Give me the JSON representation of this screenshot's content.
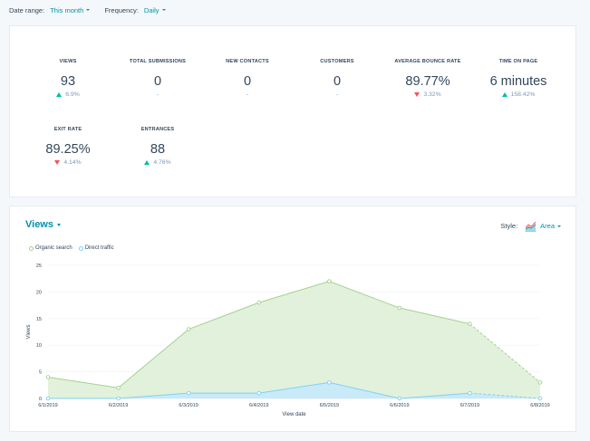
{
  "filters": {
    "date_range_label": "Date range:",
    "date_range_value": "This month",
    "frequency_label": "Frequency:",
    "frequency_value": "Daily"
  },
  "kpis": [
    {
      "title": "VIEWS",
      "value": "93",
      "change": "6.9%",
      "direction": "up"
    },
    {
      "title": "TOTAL SUBMISSIONS",
      "value": "0",
      "change": "-",
      "direction": "none"
    },
    {
      "title": "NEW CONTACTS",
      "value": "0",
      "change": "-",
      "direction": "none"
    },
    {
      "title": "CUSTOMERS",
      "value": "0",
      "change": "-",
      "direction": "none"
    },
    {
      "title": "AVERAGE BOUNCE RATE",
      "value": "89.77%",
      "change": "3.32%",
      "direction": "down"
    },
    {
      "title": "TIME ON PAGE",
      "value": "6 minutes",
      "change": "158.42%",
      "direction": "up"
    },
    {
      "title": "EXIT RATE",
      "value": "89.25%",
      "change": "4.14%",
      "direction": "down"
    },
    {
      "title": "ENTRANCES",
      "value": "88",
      "change": "4.76%",
      "direction": "up"
    }
  ],
  "chart_section": {
    "title": "Views",
    "style_label": "Style:",
    "style_value": "Area",
    "style_icon": "area-chart-icon"
  },
  "colors": {
    "accent": "#0091ae",
    "positive": "#00bda5",
    "negative": "#f2545b",
    "organic_line": "#a2d28f",
    "organic_fill": "#ddefd5",
    "direct_line": "#7fd1f7",
    "direct_fill": "#c7e9fb"
  },
  "chart_data": {
    "type": "area",
    "xlabel": "View date",
    "ylabel": "Views",
    "x": [
      "6/1/2019",
      "6/2/2019",
      "6/3/2019",
      "6/4/2019",
      "6/5/2019",
      "6/6/2019",
      "6/7/2019",
      "6/8/2019"
    ],
    "ylim": [
      0,
      25
    ],
    "yticks": [
      0,
      5,
      10,
      15,
      20,
      25
    ],
    "grid": true,
    "legend_position": "top-left",
    "dashed_from_index": 6,
    "series": [
      {
        "name": "Organic search",
        "values": [
          4,
          2,
          13,
          18,
          22,
          17,
          14,
          3
        ]
      },
      {
        "name": "Direct traffic",
        "values": [
          0,
          0,
          1,
          1,
          3,
          0,
          1,
          0
        ]
      }
    ]
  }
}
